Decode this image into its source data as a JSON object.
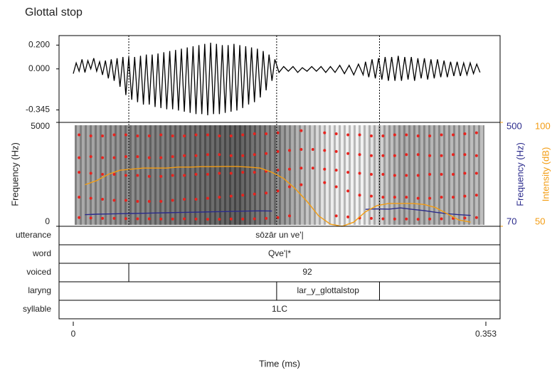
{
  "title": "Glottal stop",
  "time_axis": {
    "label": "Time (ms)",
    "xlim": [
      0,
      0.353
    ],
    "xticks": [
      0,
      0.353
    ]
  },
  "chart_data": [
    {
      "type": "line",
      "color": "#000000",
      "ylim": [
        -0.45,
        0.28
      ],
      "yticks": [
        {
          "value": 0.2,
          "label": "0.200"
        },
        {
          "value": 0,
          "label": "0.000"
        },
        {
          "value": -0.345,
          "label": "-0.345"
        }
      ],
      "x": [
        0,
        0.0025,
        0.005,
        0.0075,
        0.01,
        0.0125,
        0.015,
        0.0175,
        0.02,
        0.0225,
        0.025,
        0.0275,
        0.03,
        0.0325,
        0.035,
        0.0375,
        0.04,
        0.0425,
        0.045,
        0.0475,
        0.05,
        0.0525,
        0.055,
        0.0575,
        0.06,
        0.0625,
        0.065,
        0.0675,
        0.07,
        0.0725,
        0.075,
        0.0775,
        0.08,
        0.0825,
        0.085,
        0.0875,
        0.09,
        0.0925,
        0.095,
        0.0975,
        0.1,
        0.1025,
        0.105,
        0.1075,
        0.11,
        0.1125,
        0.115,
        0.1175,
        0.12,
        0.1225,
        0.125,
        0.1275,
        0.13,
        0.1325,
        0.135,
        0.1375,
        0.14,
        0.1425,
        0.145,
        0.1475,
        0.15,
        0.1525,
        0.155,
        0.1575,
        0.16,
        0.1625,
        0.165,
        0.1675,
        0.17,
        0.1725,
        0.176,
        0.18,
        0.184,
        0.188,
        0.192,
        0.196,
        0.2,
        0.204,
        0.208,
        0.212,
        0.216,
        0.22,
        0.224,
        0.228,
        0.232,
        0.236,
        0.24,
        0.244,
        0.248,
        0.25,
        0.2528,
        0.2556,
        0.2584,
        0.2612,
        0.264,
        0.2668,
        0.2696,
        0.2724,
        0.2752,
        0.278,
        0.2808,
        0.2836,
        0.2864,
        0.2892,
        0.292,
        0.2948,
        0.2976,
        0.3004,
        0.3032,
        0.306,
        0.3088,
        0.3116,
        0.3144,
        0.3172,
        0.32,
        0.3228,
        0.3256,
        0.3284,
        0.3312,
        0.334,
        0.3368,
        0.3396,
        0.3424,
        0.3452,
        0.348
      ],
      "values": [
        -0.04,
        0.05,
        -0.02,
        0.08,
        -0.03,
        0.07,
        0.0,
        0.09,
        -0.02,
        0.06,
        -0.05,
        0.07,
        -0.08,
        0.08,
        -0.1,
        0.09,
        -0.15,
        0.1,
        -0.22,
        0.1,
        -0.26,
        0.1,
        -0.28,
        0.11,
        -0.3,
        0.12,
        -0.3,
        0.12,
        -0.32,
        0.13,
        -0.33,
        0.14,
        -0.34,
        0.15,
        -0.34,
        0.16,
        -0.35,
        0.17,
        -0.36,
        0.18,
        -0.37,
        0.19,
        -0.38,
        0.2,
        -0.38,
        0.21,
        -0.39,
        0.22,
        -0.38,
        0.21,
        -0.38,
        0.2,
        -0.37,
        0.2,
        -0.36,
        0.21,
        -0.35,
        0.2,
        -0.33,
        0.19,
        -0.3,
        0.18,
        -0.28,
        0.17,
        -0.24,
        0.15,
        -0.18,
        0.12,
        -0.1,
        0.08,
        -0.03,
        0.02,
        -0.02,
        0.02,
        -0.03,
        0.01,
        -0.02,
        0.02,
        -0.02,
        0.02,
        -0.03,
        0.02,
        -0.03,
        0.03,
        -0.04,
        0.03,
        -0.05,
        0.04,
        -0.05,
        0.06,
        -0.07,
        0.08,
        -0.08,
        0.09,
        -0.09,
        0.1,
        -0.1,
        0.1,
        -0.1,
        0.11,
        -0.1,
        0.1,
        -0.09,
        0.1,
        -0.1,
        0.09,
        -0.08,
        0.09,
        -0.09,
        0.08,
        -0.08,
        0.08,
        -0.07,
        0.07,
        -0.07,
        0.06,
        -0.06,
        0.06,
        -0.06,
        0.05,
        -0.05,
        0.05,
        -0.04,
        0.04,
        -0.03
      ]
    },
    {
      "type": "scatter",
      "ylabel": "Frequency (Hz)",
      "ylim": [
        0,
        5000
      ],
      "yticks": [
        0,
        5000
      ],
      "y2label": "Frequency (Hz)",
      "y2lim": [
        70,
        500
      ],
      "y2ticks": [
        70,
        500
      ],
      "y2color": "#2b2b8c",
      "y3label": "Intensity (dB)",
      "y3lim": [
        50,
        100
      ],
      "y3ticks": [
        50,
        100
      ],
      "y3color": "#f39c12",
      "x": [
        0.005,
        0.015,
        0.025,
        0.035,
        0.045,
        0.055,
        0.065,
        0.075,
        0.085,
        0.095,
        0.105,
        0.115,
        0.125,
        0.135,
        0.145,
        0.155,
        0.165,
        0.175,
        0.185,
        0.195,
        0.205,
        0.215,
        0.225,
        0.235,
        0.245,
        0.255,
        0.265,
        0.275,
        0.285,
        0.295,
        0.305,
        0.315,
        0.325,
        0.335,
        0.345
      ],
      "series": [
        {
          "color": "#e8231e",
          "values": [
            420,
            400,
            380,
            380,
            370,
            360,
            360,
            350,
            350,
            360,
            350,
            340,
            340,
            350,
            350,
            360,
            380,
            420,
            500,
            null,
            null,
            null,
            500,
            450,
            400,
            380,
            360,
            350,
            350,
            340,
            350,
            360,
            380,
            400,
            420
          ]
        },
        {
          "color": "#e8231e",
          "values": [
            1400,
            1350,
            1300,
            1250,
            1250,
            1200,
            1200,
            1200,
            1250,
            1300,
            1300,
            1350,
            1400,
            1450,
            1500,
            1550,
            1600,
            1700,
            1900,
            2000,
            null,
            2100,
            1900,
            1700,
            1500,
            1450,
            1400,
            1400,
            1400,
            1350,
            1350,
            1400,
            1400,
            1450,
            1500
          ]
        },
        {
          "color": "#e8231e",
          "values": [
            2600,
            2550,
            2500,
            2500,
            2450,
            2450,
            2400,
            2400,
            2450,
            2450,
            2500,
            2500,
            2550,
            2550,
            2600,
            2600,
            2650,
            2700,
            2750,
            2800,
            2800,
            2750,
            2700,
            2600,
            2550,
            2500,
            2500,
            2450,
            2450,
            2450,
            2500,
            2500,
            2500,
            2550,
            2550
          ]
        },
        {
          "color": "#e8231e",
          "values": [
            3300,
            3350,
            3300,
            3300,
            3350,
            3350,
            3300,
            3300,
            3350,
            3400,
            3400,
            3450,
            3450,
            3400,
            3400,
            3450,
            3500,
            3600,
            3650,
            3700,
            3700,
            3650,
            3600,
            3500,
            3450,
            3400,
            3400,
            3400,
            3450,
            3450,
            3400,
            3400,
            3450,
            3450,
            3400
          ]
        },
        {
          "color": "#e8231e",
          "values": [
            4400,
            4350,
            4350,
            4400,
            4400,
            4350,
            4350,
            4400,
            4350,
            4350,
            4400,
            4400,
            4350,
            4350,
            4400,
            4450,
            4450,
            4500,
            null,
            4600,
            null,
            4500,
            4450,
            4400,
            4400,
            4350,
            4350,
            4400,
            4400,
            4350,
            4350,
            4400,
            4400,
            4450,
            4500
          ]
        },
        {
          "type": "line",
          "axis": "y2",
          "color": "#2b2b8c",
          "x": [
            0.01,
            0.02,
            0.03,
            0.04,
            0.05,
            0.06,
            0.07,
            0.08,
            0.09,
            0.1,
            0.11,
            0.12,
            0.13,
            0.14,
            0.15,
            0.16,
            0.17,
            0.18,
            0.19,
            0.2,
            0.21,
            0.22,
            0.23,
            0.24,
            0.25,
            0.26,
            0.27,
            0.28,
            0.29,
            0.3,
            0.31,
            0.32,
            0.33,
            0.34
          ],
          "values": [
            118,
            120,
            121,
            122,
            123,
            124,
            125,
            126,
            127,
            128,
            129,
            130,
            131,
            132,
            133,
            134,
            133,
            null,
            null,
            null,
            null,
            null,
            null,
            null,
            140,
            142,
            141,
            146,
            140,
            135,
            128,
            122,
            118,
            115
          ]
        },
        {
          "type": "line",
          "axis": "y3",
          "color": "#f39c12",
          "x": [
            0.01,
            0.02,
            0.03,
            0.04,
            0.05,
            0.06,
            0.07,
            0.08,
            0.09,
            0.1,
            0.11,
            0.12,
            0.13,
            0.14,
            0.15,
            0.16,
            0.17,
            0.18,
            0.19,
            0.2,
            0.21,
            0.22,
            0.23,
            0.24,
            0.25,
            0.26,
            0.27,
            0.28,
            0.29,
            0.3,
            0.31,
            0.32,
            0.33,
            0.34
          ],
          "values": [
            70,
            72,
            75,
            77,
            77.5,
            78,
            78,
            78,
            78.5,
            78.5,
            78.7,
            78.7,
            78.8,
            78.8,
            78.5,
            78,
            76,
            73,
            68,
            62,
            55,
            51,
            50,
            52,
            57,
            60,
            61,
            61,
            61,
            60.5,
            59,
            56,
            53,
            52
          ]
        }
      ]
    }
  ],
  "tiers": [
    {
      "name": "utterance",
      "intervals": [
        {
          "start": 0,
          "end": 0.353,
          "label": "sōzār un ve'|"
        }
      ]
    },
    {
      "name": "word",
      "intervals": [
        {
          "start": 0,
          "end": 0.353,
          "label": "Qve'|*"
        }
      ]
    },
    {
      "name": "voiced",
      "intervals": [
        {
          "start": 0,
          "end": 0.0475
        },
        {
          "start": 0.0475,
          "end": 0.353,
          "label": "92"
        }
      ]
    },
    {
      "name": "laryng",
      "intervals": [
        {
          "start": 0,
          "end": 0.174
        },
        {
          "start": 0.174,
          "end": 0.262,
          "label": "lar_y_glottalstop"
        },
        {
          "start": 0.262,
          "end": 0.353
        }
      ]
    },
    {
      "name": "syllable",
      "intervals": [
        {
          "start": 0,
          "end": 0.353,
          "label": "1LC"
        }
      ]
    }
  ]
}
